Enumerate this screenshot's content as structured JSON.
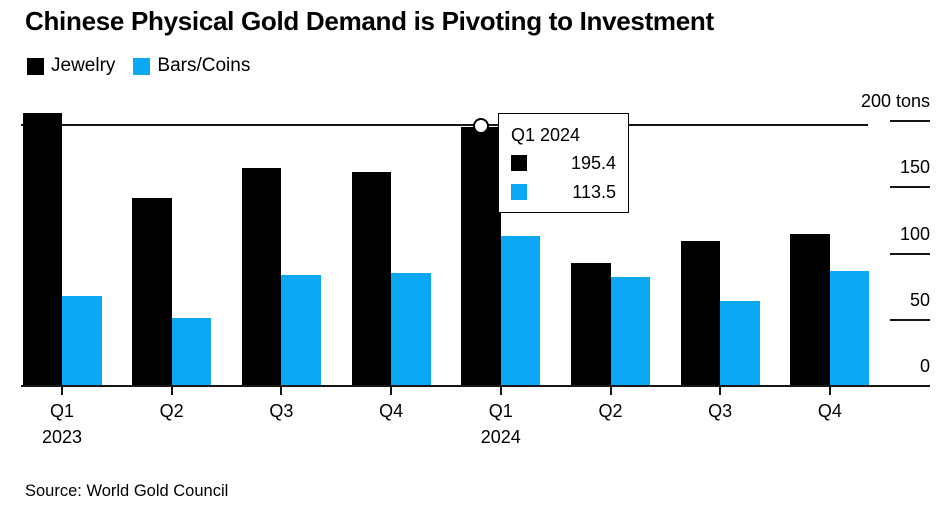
{
  "header": {
    "title": "Chinese Physical Gold Demand is Pivoting to Investment"
  },
  "legend": {
    "items": [
      {
        "label": "Jewelry",
        "color": "#000000"
      },
      {
        "label": "Bars/Coins",
        "color": "#0BA9F5"
      }
    ]
  },
  "tooltip": {
    "title": "Q1 2024",
    "rows": [
      {
        "series": "Jewelry",
        "color": "#000000",
        "value": "195.4"
      },
      {
        "series": "Bars/Coins",
        "color": "#0BA9F5",
        "value": "113.5"
      }
    ]
  },
  "y_axis": {
    "tick_labels": [
      "0",
      "50",
      "100",
      "150",
      "200 tons"
    ]
  },
  "footer": {
    "source": "Source: World Gold Council"
  },
  "chart_data": {
    "type": "bar",
    "title": "Chinese Physical Gold Demand is Pivoting to Investment",
    "categories": [
      "Q1",
      "Q2",
      "Q3",
      "Q4",
      "Q1",
      "Q2",
      "Q3",
      "Q4"
    ],
    "category_years": {
      "0": "2023",
      "4": "2024"
    },
    "series": [
      {
        "name": "Jewelry",
        "color": "#000000",
        "values": [
          206.4,
          141.6,
          164.2,
          161.2,
          195.4,
          92.7,
          109.2,
          115.0
        ]
      },
      {
        "name": "Bars/Coins",
        "color": "#0BA9F5",
        "values": [
          67.8,
          51.2,
          83.6,
          85.1,
          113.5,
          82.1,
          64.0,
          86.6
        ]
      }
    ],
    "ylabel": "tons",
    "ylim": [
      0,
      200
    ],
    "grid": false,
    "legend_position": "top-left",
    "axis_side": "right",
    "highlight": {
      "category_index": 4,
      "label": "Q1 2024",
      "crosshair_value": 195.4,
      "hover_series": "Jewelry"
    }
  }
}
